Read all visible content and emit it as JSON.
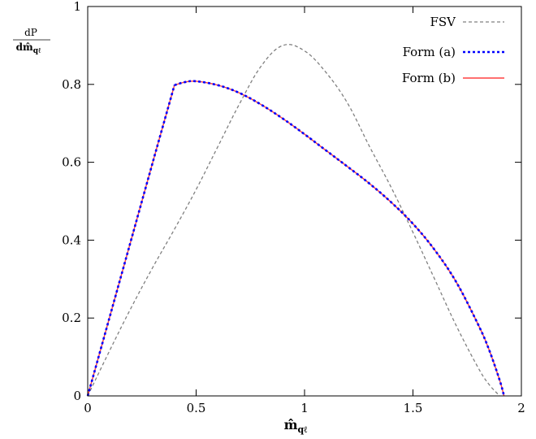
{
  "chart_data": {
    "type": "line",
    "title": "",
    "xlabel": "m̂",
    "xlabel_sub": "qℓ",
    "ylabel_num": "dP",
    "ylabel_den": "dm̂",
    "ylabel_den_sub": "qℓ",
    "xlim": [
      0,
      2
    ],
    "ylim": [
      0,
      1
    ],
    "x_ticks": [
      0,
      0.5,
      1,
      1.5,
      2
    ],
    "x_tick_labels": [
      "0",
      "0.5",
      "1",
      "1.5",
      "2"
    ],
    "y_ticks": [
      0,
      0.2,
      0.4,
      0.6,
      0.8,
      1
    ],
    "y_tick_labels": [
      "0",
      "0.2",
      "0.4",
      "0.6",
      "0.8",
      "1"
    ],
    "grid": false,
    "legend_position": "top-right",
    "series": [
      {
        "name": "FSV",
        "color": "#808080",
        "style": "dashed",
        "x": [
          0,
          0.1,
          0.2,
          0.3,
          0.4,
          0.5,
          0.6,
          0.7,
          0.8,
          0.9,
          1.0,
          1.1,
          1.2,
          1.3,
          1.4,
          1.5,
          1.6,
          1.7,
          1.8,
          1.85,
          1.9
        ],
        "y": [
          0,
          0.115,
          0.226,
          0.33,
          0.428,
          0.53,
          0.64,
          0.75,
          0.847,
          0.9,
          0.886,
          0.83,
          0.75,
          0.64,
          0.535,
          0.42,
          0.3,
          0.18,
          0.073,
          0.03,
          0
        ]
      },
      {
        "name": "Form (a)",
        "color": "#0000ff",
        "style": "dotted",
        "x": [
          0,
          0.1,
          0.2,
          0.3,
          0.4,
          0.45,
          0.5,
          0.6,
          0.7,
          0.8,
          0.9,
          1.0,
          1.1,
          1.2,
          1.3,
          1.4,
          1.5,
          1.6,
          1.7,
          1.8,
          1.85,
          1.9,
          1.92
        ],
        "y": [
          0,
          0.2,
          0.4,
          0.6,
          0.798,
          0.806,
          0.808,
          0.798,
          0.778,
          0.748,
          0.712,
          0.672,
          0.63,
          0.588,
          0.545,
          0.497,
          0.442,
          0.375,
          0.292,
          0.184,
          0.12,
          0.04,
          0
        ]
      },
      {
        "name": "Form (b)",
        "color": "#ff4040",
        "style": "solid",
        "x": [
          0,
          0.1,
          0.2,
          0.3,
          0.4,
          0.45,
          0.5,
          0.6,
          0.7,
          0.8,
          0.9,
          1.0,
          1.1,
          1.2,
          1.3,
          1.4,
          1.5,
          1.6,
          1.7,
          1.8,
          1.85,
          1.9,
          1.92
        ],
        "y": [
          0,
          0.2,
          0.4,
          0.6,
          0.798,
          0.806,
          0.808,
          0.798,
          0.778,
          0.748,
          0.712,
          0.672,
          0.63,
          0.588,
          0.545,
          0.497,
          0.442,
          0.375,
          0.292,
          0.184,
          0.12,
          0.04,
          0
        ]
      }
    ]
  }
}
